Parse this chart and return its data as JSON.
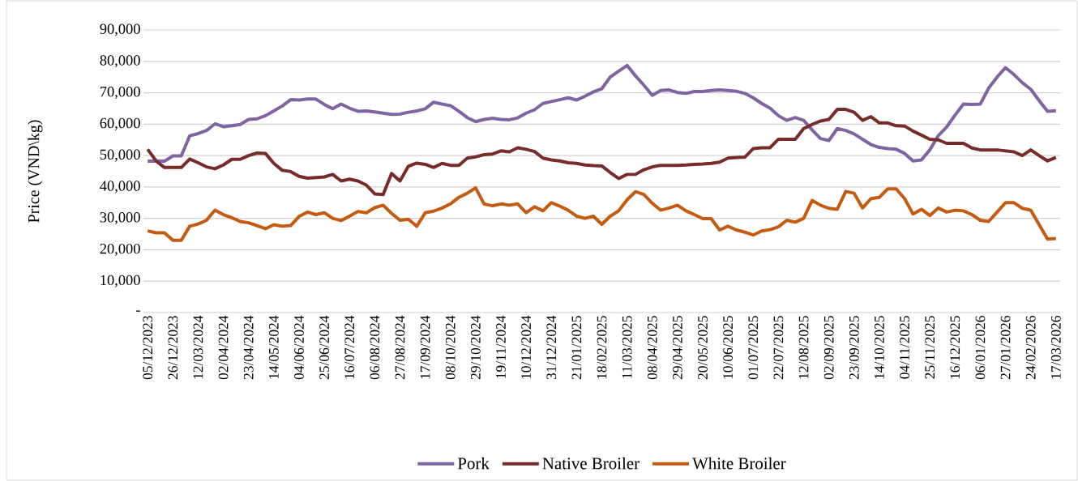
{
  "chart_data": {
    "type": "line",
    "ylabel": "Price (VND\\kg)",
    "categories": [
      "05/12/2023",
      null,
      null,
      "26/12/2023",
      null,
      null,
      "12/03/2024",
      null,
      null,
      "02/04/2024",
      null,
      null,
      "23/04/2024",
      null,
      null,
      "14/05/2024",
      null,
      null,
      "04/06/2024",
      null,
      null,
      "25/06/2024",
      null,
      null,
      "16/07/2024",
      null,
      null,
      "06/08/2024",
      null,
      null,
      "27/08/2024",
      null,
      null,
      "17/09/2024",
      null,
      null,
      "08/10/2024",
      null,
      null,
      "29/10/2024",
      null,
      null,
      "19/11/2024",
      null,
      null,
      "10/12/2024",
      null,
      null,
      "31/12/2024",
      null,
      null,
      "21/01/2025",
      null,
      null,
      "18/02/2025",
      null,
      null,
      "11/03/2025",
      null,
      null,
      "08/04/2025",
      null,
      null,
      "29/04/2025",
      null,
      null,
      "20/05/2025",
      null,
      null,
      "10/06/2025",
      null,
      null,
      "01/07/2025",
      null,
      null,
      "22/07/2025",
      null,
      null,
      "12/08/2025",
      null,
      null,
      "02/09/2025",
      null,
      null,
      "23/09/2025",
      null,
      null,
      "14/10/2025",
      null,
      null,
      "04/11/2025",
      null,
      null,
      "25/11/2025",
      null,
      null,
      "16/12/2025",
      null,
      null,
      "06/01/2026",
      null,
      null,
      "27/01/2026",
      null,
      null,
      "24/02/2026",
      null,
      null,
      "17/03/2026"
    ],
    "series": [
      {
        "name": "Pork",
        "color": "#8064a2",
        "values": [
          48200,
          48300,
          48200,
          49900,
          49900,
          56300,
          57000,
          58000,
          60100,
          59200,
          59500,
          59900,
          61500,
          61700,
          62700,
          64200,
          65800,
          67800,
          67700,
          68000,
          68000,
          66300,
          64900,
          66400,
          65100,
          64100,
          64200,
          63900,
          63500,
          63100,
          63200,
          63800,
          64200,
          64900,
          67000,
          66400,
          65900,
          64100,
          62100,
          60800,
          61500,
          61900,
          61500,
          61400,
          62000,
          63500,
          64600,
          66600,
          67200,
          67800,
          68400,
          67700,
          68900,
          70300,
          71300,
          75000,
          76900,
          78700,
          75400,
          72400,
          69200,
          70700,
          70900,
          70100,
          69800,
          70400,
          70400,
          70700,
          70900,
          70700,
          70500,
          69800,
          68400,
          66600,
          65100,
          62700,
          61200,
          62100,
          61200,
          58200,
          55400,
          54800,
          58600,
          58000,
          56900,
          55200,
          53500,
          52600,
          52200,
          52000,
          50700,
          48300,
          48600,
          51800,
          56300,
          59100,
          62900,
          66400,
          66300,
          66400,
          71500,
          75000,
          78000,
          75800,
          73200,
          71100,
          67500,
          64100,
          64300
        ]
      },
      {
        "name": "Native Broiler",
        "color": "#772c2a",
        "values": [
          52000,
          48300,
          46200,
          46200,
          46200,
          48900,
          47700,
          46400,
          45800,
          47000,
          48800,
          48800,
          50000,
          50800,
          50700,
          47500,
          45300,
          44900,
          43400,
          42800,
          43000,
          43200,
          44000,
          41900,
          42500,
          41900,
          40600,
          37800,
          37600,
          44300,
          41900,
          46600,
          47600,
          47200,
          46200,
          47500,
          46900,
          46900,
          49200,
          49600,
          50300,
          50500,
          51500,
          51200,
          52500,
          52000,
          51300,
          49200,
          48600,
          48300,
          47700,
          47500,
          47000,
          46800,
          46700,
          44600,
          42700,
          44000,
          44000,
          45500,
          46400,
          46900,
          46900,
          46900,
          47000,
          47200,
          47300,
          47500,
          47900,
          49200,
          49400,
          49500,
          52200,
          52500,
          52500,
          55200,
          55200,
          55200,
          58600,
          59900,
          61000,
          61500,
          64700,
          64700,
          63800,
          61200,
          62400,
          60400,
          60400,
          59500,
          59400,
          57800,
          56500,
          55200,
          55000,
          53900,
          53900,
          53900,
          52400,
          51800,
          51800,
          51800,
          51500,
          51200,
          50000,
          51800,
          50000,
          48300,
          49400
        ]
      },
      {
        "name": "White Broiler",
        "color": "#c55a11",
        "values": [
          26000,
          25400,
          25400,
          23000,
          23000,
          27500,
          28200,
          29400,
          32600,
          31200,
          30200,
          29000,
          28600,
          27700,
          26700,
          28000,
          27500,
          27700,
          30600,
          32000,
          31200,
          31800,
          30000,
          29300,
          30700,
          32200,
          31800,
          33400,
          34200,
          31600,
          29400,
          29700,
          27500,
          31800,
          32300,
          33300,
          34600,
          36700,
          38000,
          39700,
          34600,
          34000,
          34600,
          34200,
          34600,
          31800,
          33700,
          32400,
          35000,
          33900,
          32600,
          30700,
          30000,
          30700,
          28100,
          30700,
          32400,
          35900,
          38500,
          37600,
          34800,
          32600,
          33300,
          34200,
          32400,
          31200,
          29900,
          29900,
          26300,
          27500,
          26300,
          25600,
          24700,
          26000,
          26400,
          27300,
          29400,
          28800,
          30000,
          35700,
          34200,
          33200,
          32900,
          38600,
          38000,
          33300,
          36300,
          36700,
          39400,
          39400,
          36300,
          31400,
          32900,
          30900,
          33300,
          32000,
          32600,
          32400,
          31200,
          29400,
          29000,
          32000,
          35000,
          35000,
          33200,
          32600,
          28000,
          23400,
          23600
        ]
      }
    ],
    "ylim": [
      0,
      90000
    ],
    "yticks": [
      {
        "value": 0,
        "label": "-"
      },
      {
        "value": 10000,
        "label": "10,000"
      },
      {
        "value": 20000,
        "label": "20,000"
      },
      {
        "value": 30000,
        "label": "30,000"
      },
      {
        "value": 40000,
        "label": "40,000"
      },
      {
        "value": 50000,
        "label": "50,000"
      },
      {
        "value": 60000,
        "label": "60,000"
      },
      {
        "value": 70000,
        "label": "70,000"
      },
      {
        "value": 80000,
        "label": "80,000"
      },
      {
        "value": 90000,
        "label": "90,000"
      }
    ],
    "grid": "y",
    "legend": "bottom",
    "marker": "none",
    "line_style": "solid"
  }
}
